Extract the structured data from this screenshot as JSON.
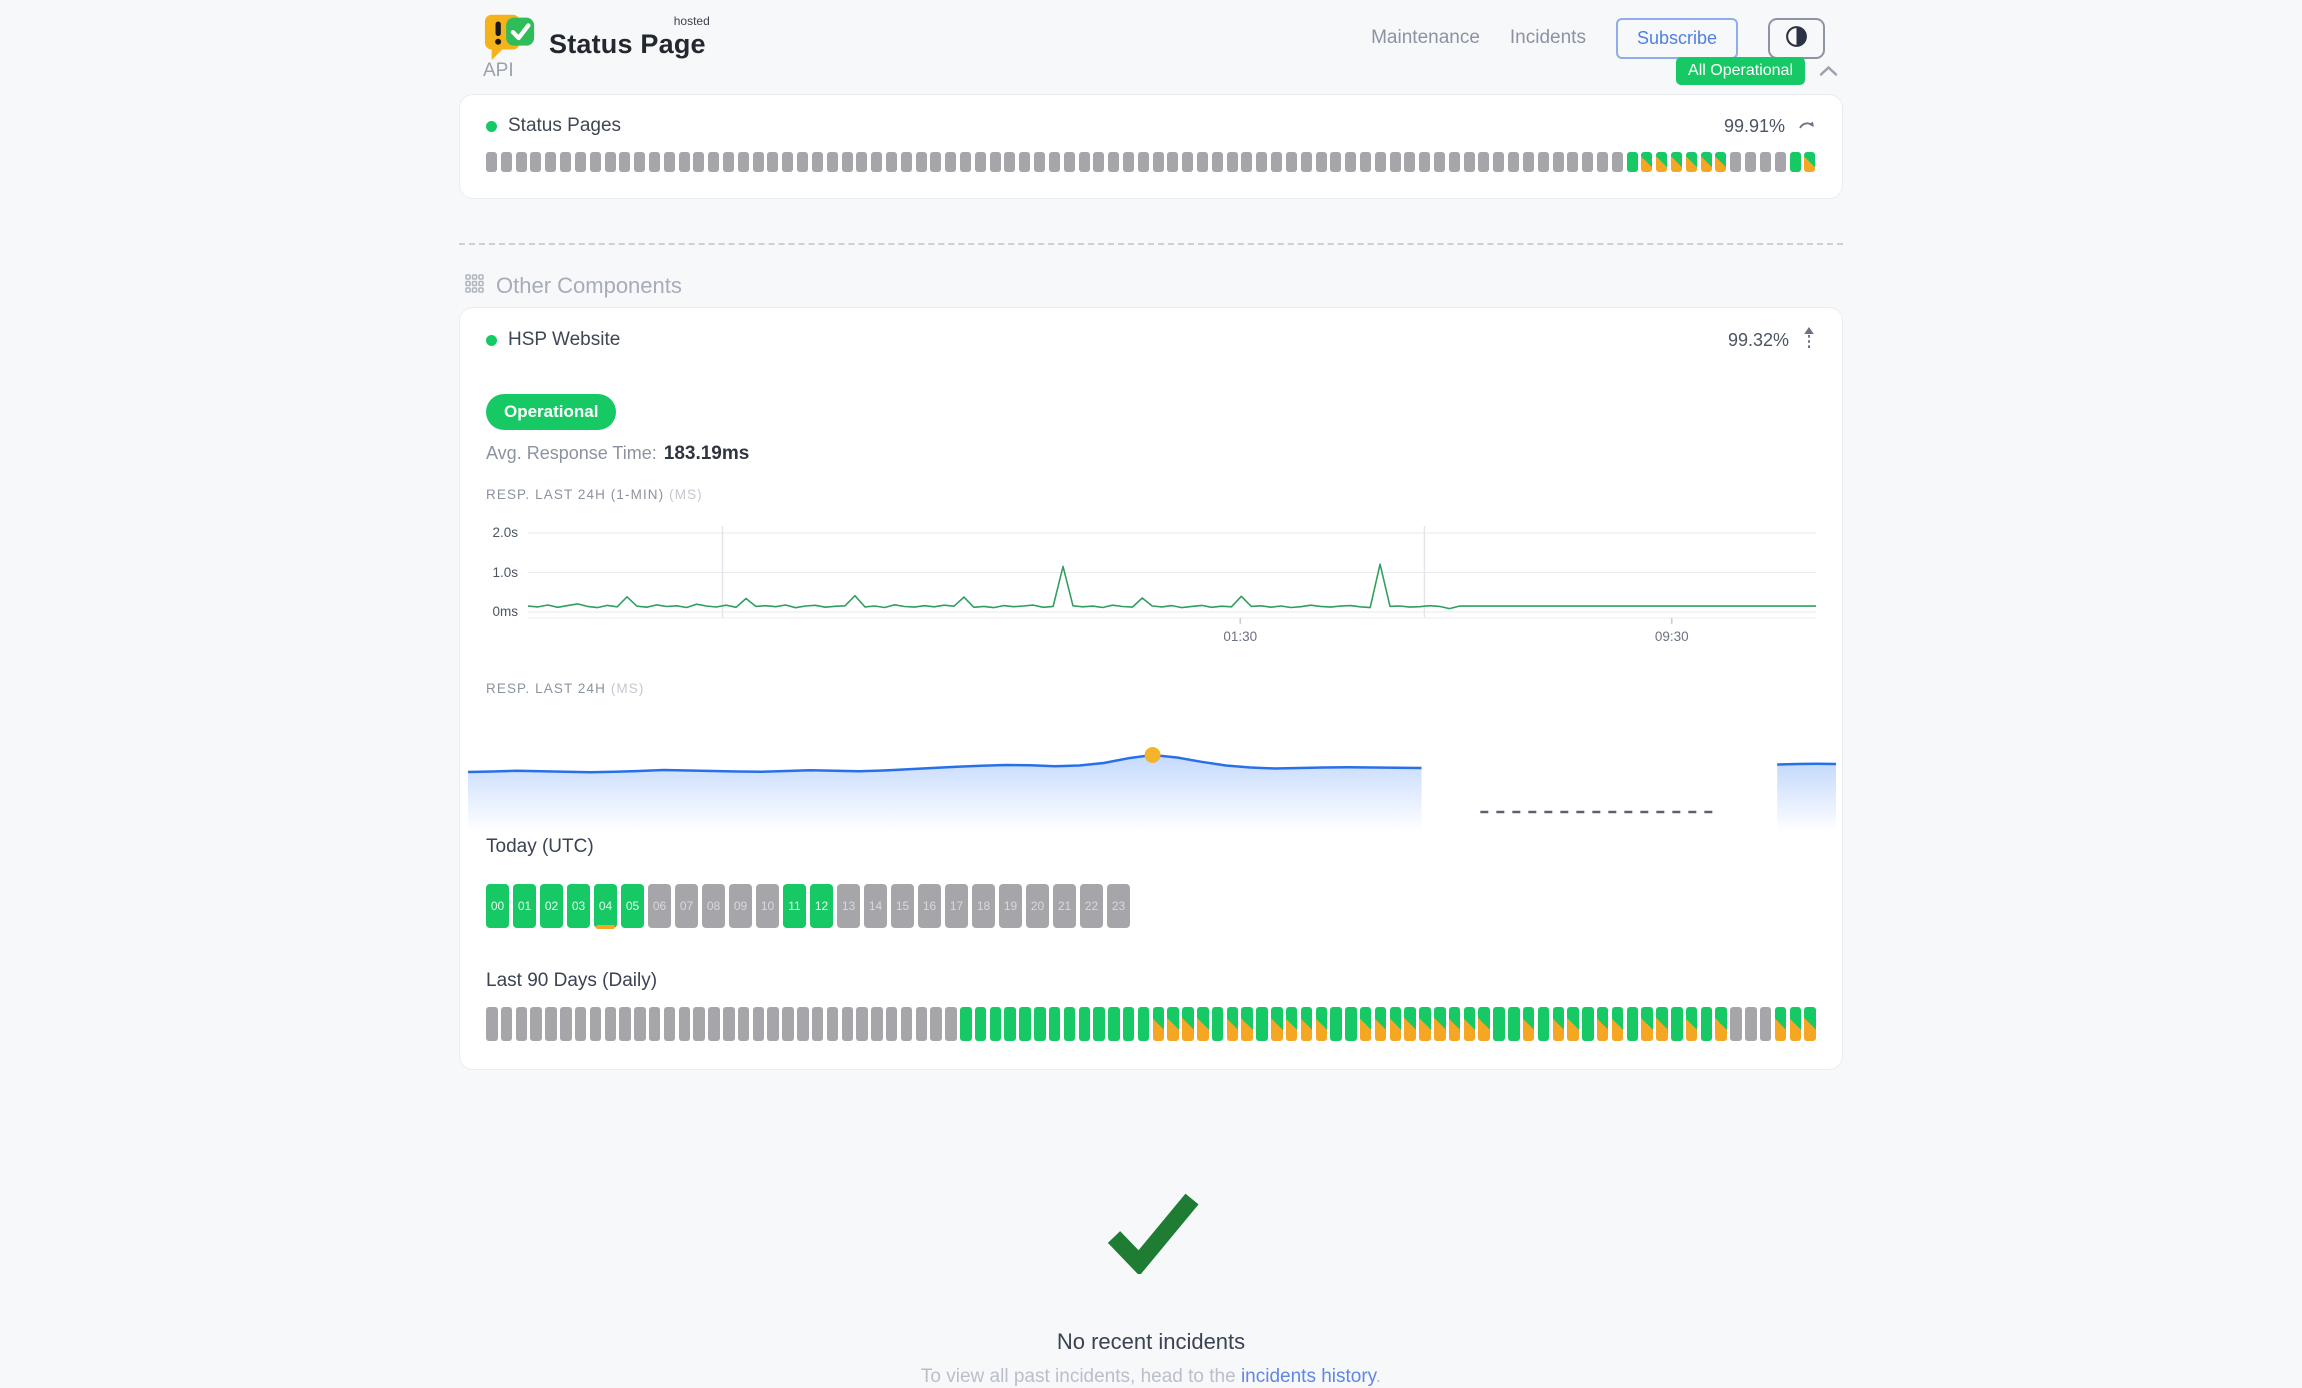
{
  "brand": {
    "hosted_tag": "hosted",
    "name": "Status Page"
  },
  "nav": {
    "maintenance": "Maintenance",
    "incidents": "Incidents",
    "subscribe": "Subscribe"
  },
  "overall": {
    "status": "All Operational"
  },
  "api_section": {
    "title": "API",
    "component_name": "Status Pages",
    "uptime_pct": "99.91%",
    "blocks": [
      "na",
      "na",
      "na",
      "na",
      "na",
      "na",
      "na",
      "na",
      "na",
      "na",
      "na",
      "na",
      "na",
      "na",
      "na",
      "na",
      "na",
      "na",
      "na",
      "na",
      "na",
      "na",
      "na",
      "na",
      "na",
      "na",
      "na",
      "na",
      "na",
      "na",
      "na",
      "na",
      "na",
      "na",
      "na",
      "na",
      "na",
      "na",
      "na",
      "na",
      "na",
      "na",
      "na",
      "na",
      "na",
      "na",
      "na",
      "na",
      "na",
      "na",
      "na",
      "na",
      "na",
      "na",
      "na",
      "na",
      "na",
      "na",
      "na",
      "na",
      "na",
      "na",
      "na",
      "na",
      "na",
      "na",
      "na",
      "na",
      "na",
      "na",
      "na",
      "na",
      "na",
      "na",
      "na",
      "na",
      "na",
      "ok",
      "deg",
      "deg",
      "deg",
      "deg",
      "deg",
      "deg",
      "na",
      "na",
      "na",
      "na",
      "ok",
      "deg"
    ]
  },
  "other_section": {
    "title": "Other Components",
    "component_name": "HSP Website",
    "uptime_pct": "99.32%",
    "status_badge": "Operational",
    "avg_label": "Avg. Response Time:",
    "avg_value": "183.19ms",
    "chart1_title": "RESP. LAST 24H (1-MIN)",
    "chart1_unit": "(MS)",
    "chart2_title": "RESP. LAST 24H",
    "chart2_unit": "(MS)",
    "today_title": "Today (UTC)",
    "hours": [
      {
        "label": "00",
        "status": "ok"
      },
      {
        "label": "01",
        "status": "ok"
      },
      {
        "label": "02",
        "status": "ok"
      },
      {
        "label": "03",
        "status": "ok"
      },
      {
        "label": "04",
        "status": "ok",
        "marker": true
      },
      {
        "label": "05",
        "status": "ok"
      },
      {
        "label": "06",
        "status": "na"
      },
      {
        "label": "07",
        "status": "na"
      },
      {
        "label": "08",
        "status": "na"
      },
      {
        "label": "09",
        "status": "na"
      },
      {
        "label": "10",
        "status": "na"
      },
      {
        "label": "11",
        "status": "ok"
      },
      {
        "label": "12",
        "status": "ok"
      },
      {
        "label": "13",
        "status": "na"
      },
      {
        "label": "14",
        "status": "na"
      },
      {
        "label": "15",
        "status": "na"
      },
      {
        "label": "16",
        "status": "na"
      },
      {
        "label": "17",
        "status": "na"
      },
      {
        "label": "18",
        "status": "na"
      },
      {
        "label": "19",
        "status": "na"
      },
      {
        "label": "20",
        "status": "na"
      },
      {
        "label": "21",
        "status": "na"
      },
      {
        "label": "22",
        "status": "na"
      },
      {
        "label": "23",
        "status": "na"
      }
    ],
    "daily_title": "Last 90 Days (Daily)",
    "daily_blocks": [
      "na",
      "na",
      "na",
      "na",
      "na",
      "na",
      "na",
      "na",
      "na",
      "na",
      "na",
      "na",
      "na",
      "na",
      "na",
      "na",
      "na",
      "na",
      "na",
      "na",
      "na",
      "na",
      "na",
      "na",
      "na",
      "na",
      "na",
      "na",
      "na",
      "na",
      "na",
      "na",
      "ok",
      "ok",
      "ok",
      "ok",
      "ok",
      "ok",
      "ok",
      "ok",
      "ok",
      "ok",
      "ok",
      "ok",
      "ok",
      "deg",
      "deg",
      "deg",
      "deg",
      "ok",
      "deg",
      "deg",
      "ok",
      "deg",
      "deg",
      "deg",
      "deg",
      "ok",
      "ok",
      "deg",
      "deg",
      "deg",
      "deg",
      "deg",
      "deg",
      "deg",
      "deg",
      "deg",
      "ok",
      "ok",
      "deg",
      "ok",
      "deg",
      "deg",
      "ok",
      "deg",
      "deg",
      "ok",
      "deg",
      "deg",
      "ok",
      "deg",
      "ok",
      "deg",
      "na",
      "na",
      "na",
      "deg",
      "deg",
      "deg"
    ]
  },
  "footer": {
    "title": "No recent incidents",
    "text_prefix": "To view all past incidents, head to the ",
    "link_text": "incidents history",
    "text_suffix": "."
  },
  "colors": {
    "green": "#17c964",
    "orange": "#f5a623",
    "gray_block": "#a6a6aa",
    "blue_accent": "#4e80e1",
    "chart_green": "#2f9e60",
    "chart_blue": "#2970e8",
    "dot_yellow": "#f3b32b",
    "check_green": "#1e7d33"
  },
  "chart_data": [
    {
      "type": "line",
      "title": "RESP. LAST 24H (1-MIN)",
      "unit": "ms",
      "y_ticks": [
        {
          "value": 2000,
          "label": "2.0s"
        },
        {
          "value": 1000,
          "label": "1.0s"
        },
        {
          "value": 0,
          "label": "0ms"
        }
      ],
      "x_ticks": [
        {
          "label": "01:30",
          "pos": 0.553
        },
        {
          "label": "09:30",
          "pos": 0.888
        }
      ],
      "grid_x_pos": [
        0.151,
        0.696
      ],
      "ylim": [
        0,
        2200
      ],
      "line_color": "#2f9e60",
      "values": [
        150,
        128,
        176,
        119,
        162,
        204,
        143,
        112,
        168,
        131,
        385,
        148,
        122,
        181,
        139,
        157,
        114,
        198,
        151,
        127,
        173,
        118,
        342,
        141,
        160,
        133,
        177,
        109,
        153,
        169,
        121,
        144,
        158,
        412,
        129,
        151,
        113,
        183,
        140,
        123,
        159,
        132,
        172,
        148,
        376,
        118,
        142,
        111,
        163,
        134,
        152,
        174,
        120,
        141,
        1155,
        157,
        131,
        149,
        113,
        171,
        139,
        124,
        355,
        152,
        128,
        161,
        112,
        143,
        167,
        119,
        148,
        131,
        398,
        142,
        158,
        121,
        152,
        113,
        134,
        172,
        141,
        123,
        149,
        162,
        131,
        112,
        1210,
        143,
        151,
        124,
        133,
        159,
        141,
        87,
        150,
        150,
        150,
        150,
        150,
        150,
        150,
        150,
        150,
        150,
        150,
        150,
        150,
        150,
        150,
        150,
        150,
        150,
        150,
        150,
        150,
        150,
        150,
        150,
        150,
        150,
        150,
        150,
        150,
        150,
        150,
        150,
        150,
        150,
        150,
        150,
        150
      ]
    },
    {
      "type": "area",
      "title": "RESP. LAST 24H",
      "unit": "ms",
      "line_color": "#2970e8",
      "dot_color": "#f3b32b",
      "segments": [
        {
          "x_start": 0,
          "x_end": 0.697,
          "values": [
            178,
            180,
            183,
            181,
            179,
            177,
            179,
            182,
            186,
            184,
            182,
            180,
            179,
            182,
            185,
            183,
            181,
            184,
            189,
            194,
            199,
            203,
            206,
            205,
            201,
            204,
            214,
            233,
            246,
            236,
            219,
            204,
            196,
            192,
            194,
            196,
            197,
            196,
            195,
            194
          ]
        },
        {
          "x_start": 0.957,
          "x_end": 1,
          "values": [
            208,
            210,
            211,
            210
          ]
        }
      ],
      "gap_dashed_line": {
        "x_start": 0.74,
        "x_end": 0.911
      },
      "highlight_dot": {
        "segment": 0,
        "index": 28
      }
    }
  ]
}
